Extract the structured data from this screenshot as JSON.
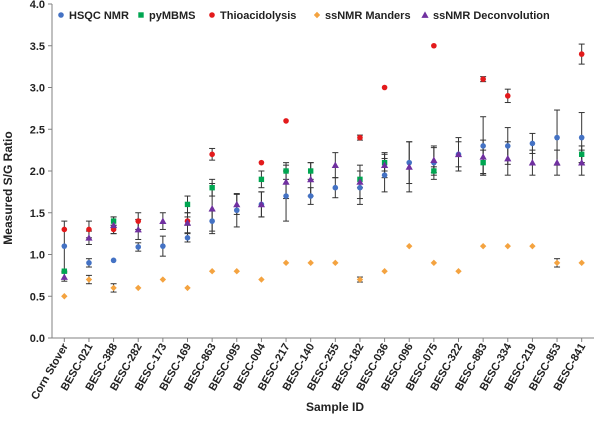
{
  "chart_data": {
    "type": "scatter",
    "title": "",
    "xlabel": "Sample ID",
    "ylabel": "Measured S/G Ratio",
    "ylim": [
      0,
      4
    ],
    "yticks": [
      "0.0",
      "0.5",
      "1.0",
      "1.5",
      "2.0",
      "2.5",
      "3.0",
      "3.5",
      "4.0"
    ],
    "grid": false,
    "legend_position": "top",
    "categories": [
      "Corn Stover",
      "BESC-021",
      "BESC-388",
      "BESC-282",
      "BESC-173",
      "BESC-169",
      "BESC-863",
      "BESC-095",
      "BESC-004",
      "BESC-217",
      "BESC-140",
      "BESC-255",
      "BESC-182",
      "BESC-036",
      "BESC-096",
      "BESC-075",
      "BESC-322",
      "BESC-883",
      "BESC-334",
      "BESC-219",
      "BESC-853",
      "BESC-841"
    ],
    "series": [
      {
        "name": "HSQC NMR",
        "color": "#4472c4",
        "marker": "circle",
        "values": [
          1.1,
          0.9,
          0.93,
          1.09,
          1.1,
          1.2,
          1.4,
          1.53,
          1.6,
          1.7,
          1.7,
          1.8,
          1.8,
          1.95,
          2.1,
          2.1,
          2.2,
          2.3,
          2.3,
          2.33,
          2.4,
          2.4
        ],
        "errors": [
          0.3,
          0.05,
          0,
          0.05,
          0.12,
          0.05,
          0.12,
          0.2,
          0.15,
          0.3,
          0.1,
          0.12,
          0.2,
          0.2,
          0.25,
          0.2,
          0.2,
          0.35,
          0.22,
          0.12,
          0.33,
          0.3
        ]
      },
      {
        "name": "pyMBMS",
        "color": "#00a651",
        "marker": "square",
        "values": [
          0.8,
          null,
          1.4,
          null,
          null,
          1.6,
          1.8,
          null,
          1.9,
          2.0,
          2.0,
          null,
          1.9,
          2.1,
          null,
          2.0,
          null,
          2.1,
          null,
          null,
          null,
          2.2
        ],
        "errors": [
          0,
          null,
          0.05,
          null,
          null,
          0.1,
          0.1,
          null,
          0.1,
          0.1,
          0.1,
          null,
          0.1,
          0.1,
          null,
          0.05,
          null,
          0.15,
          null,
          null,
          null,
          0.1
        ]
      },
      {
        "name": "Thioacidolysis",
        "color": "#e31a1c",
        "marker": "circle",
        "values": [
          1.3,
          1.3,
          1.3,
          1.4,
          null,
          1.4,
          2.2,
          null,
          2.1,
          2.6,
          null,
          null,
          2.4,
          3.0,
          null,
          3.5,
          null,
          3.1,
          2.9,
          null,
          null,
          3.4
        ],
        "errors": [
          0,
          0.1,
          0.05,
          0.1,
          null,
          0.05,
          0.07,
          null,
          0,
          0,
          null,
          null,
          0.03,
          0,
          null,
          0,
          null,
          0.03,
          0.08,
          null,
          null,
          0.12
        ]
      },
      {
        "name": "ssNMR Manders",
        "color": "#f4a340",
        "marker": "diamond",
        "values": [
          0.5,
          0.7,
          0.6,
          0.6,
          0.7,
          0.6,
          0.8,
          0.8,
          0.7,
          0.9,
          0.9,
          0.9,
          0.7,
          0.8,
          1.1,
          0.9,
          0.8,
          1.1,
          1.1,
          1.1,
          0.9,
          0.9
        ],
        "errors": [
          0,
          0.05,
          0.05,
          0,
          0,
          0,
          0,
          0,
          0,
          0,
          0,
          0,
          0.03,
          0,
          0,
          0,
          0,
          0,
          0,
          0,
          0.05,
          0
        ]
      },
      {
        "name": "ssNMR Deconvolution",
        "color": "#7030a0",
        "marker": "triangle",
        "values": [
          0.73,
          1.2,
          1.35,
          1.3,
          1.4,
          1.38,
          1.55,
          1.6,
          1.6,
          1.87,
          1.9,
          2.07,
          1.87,
          2.07,
          2.05,
          2.13,
          2.2,
          2.17,
          2.15,
          2.1,
          2.1,
          2.1
        ],
        "errors": [
          0.05,
          0.08,
          0.1,
          0.12,
          0.1,
          0.12,
          0.3,
          0.12,
          0.15,
          0.2,
          0.2,
          0.15,
          0.2,
          0.15,
          0.3,
          0.15,
          0.15,
          0.2,
          0.2,
          0.15,
          0.15,
          0.15
        ]
      }
    ]
  }
}
